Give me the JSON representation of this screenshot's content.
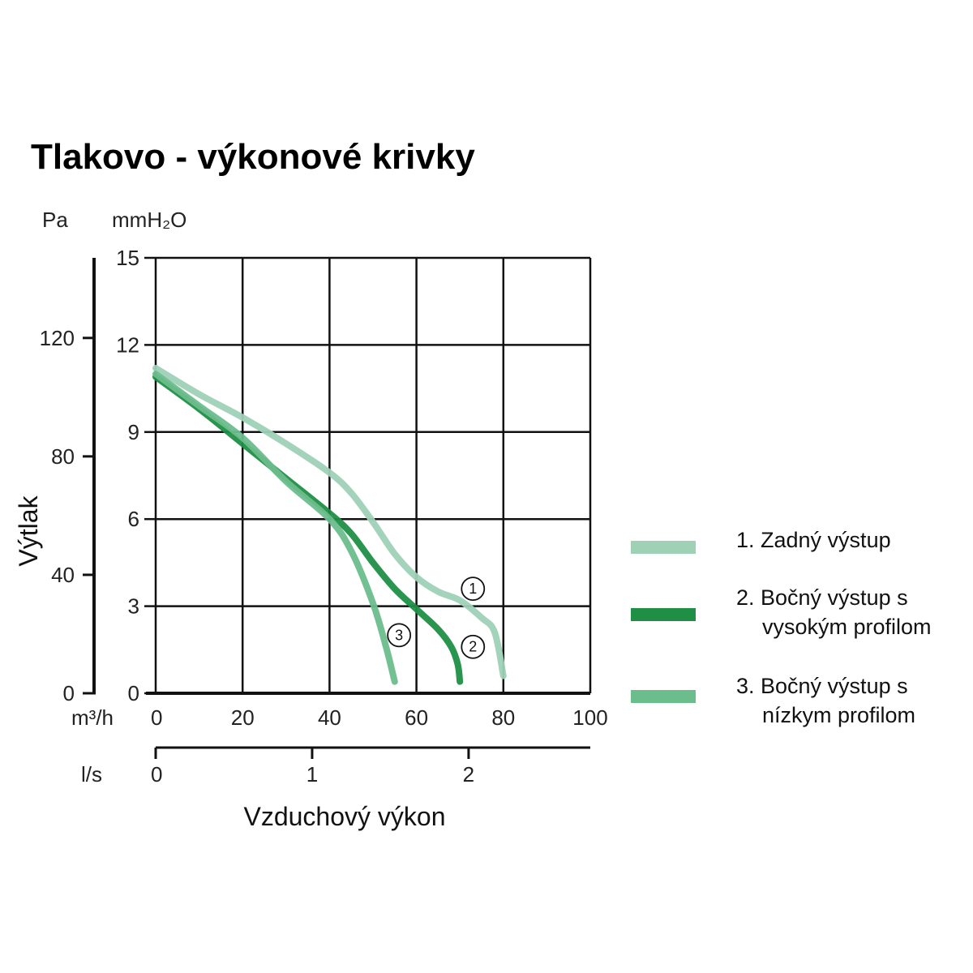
{
  "chart_data": {
    "type": "line",
    "title": "Tlakovo - výkonové krivky",
    "xlabel": "Vzduchový výkon",
    "ylabel": "Výtlak",
    "x_primary": {
      "unit": "m³/h",
      "range": [
        0,
        100
      ],
      "ticks": [
        "0",
        "20",
        "40",
        "60",
        "80",
        "100"
      ]
    },
    "x_secondary": {
      "unit": "l/s",
      "ticks": [
        "0",
        "1",
        "2"
      ],
      "tick_values_m3h": [
        0,
        36,
        72
      ]
    },
    "y_primary": {
      "unit": "mmH₂O",
      "range": [
        0,
        15
      ],
      "ticks": [
        "0",
        "3",
        "6",
        "9",
        "12",
        "15"
      ]
    },
    "y_secondary": {
      "unit": "Pa",
      "ticks": [
        "0",
        "40",
        "80",
        "120"
      ],
      "tick_values_mmh2o": [
        0,
        4.08,
        8.16,
        12.24
      ]
    },
    "grid": true,
    "legend_position": "right",
    "series": [
      {
        "name": "1. Zadný výstup",
        "legend_lines": [
          "1. Zadný výstup"
        ],
        "marker": "1",
        "color": "#9fd1b7",
        "x": [
          0,
          10,
          20,
          30,
          40,
          45,
          50,
          55,
          60,
          65,
          70,
          75,
          78,
          80
        ],
        "y": [
          11.2,
          10.3,
          9.5,
          8.6,
          7.6,
          6.9,
          5.9,
          4.8,
          4.0,
          3.5,
          3.2,
          2.6,
          2.1,
          0.6
        ]
      },
      {
        "name": "2. Bočný výstup s vysokým profilom",
        "legend_lines": [
          "2. Bočný výstup s",
          "vysokým profilom"
        ],
        "marker": "2",
        "color": "#1f8f45",
        "x": [
          0,
          10,
          20,
          30,
          40,
          45,
          50,
          55,
          60,
          65,
          68,
          69.5,
          70
        ],
        "y": [
          10.9,
          9.8,
          8.6,
          7.4,
          6.2,
          5.5,
          4.5,
          3.6,
          2.9,
          2.2,
          1.6,
          1.0,
          0.4
        ]
      },
      {
        "name": "3. Bočný výstup s nízkym profilom",
        "legend_lines": [
          "3. Bočný výstup s",
          "nízkym profilom"
        ],
        "marker": "3",
        "color": "#6cbd8c",
        "x": [
          0,
          10,
          20,
          30,
          40,
          45,
          50,
          53,
          55
        ],
        "y": [
          11.0,
          9.9,
          8.8,
          7.3,
          6.0,
          4.9,
          3.1,
          1.6,
          0.4
        ]
      }
    ]
  }
}
